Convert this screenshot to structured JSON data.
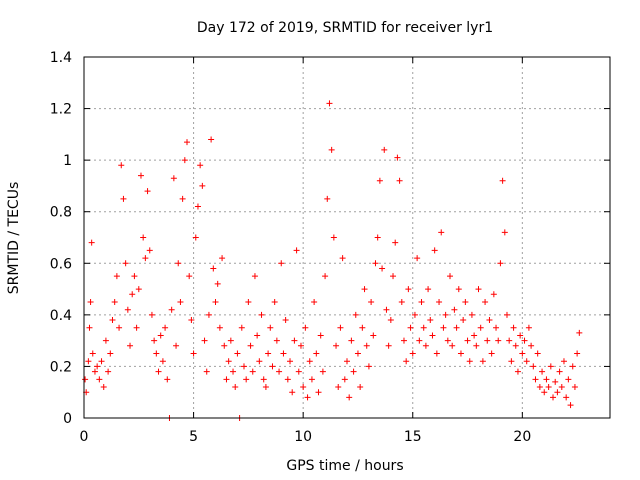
{
  "chart_data": {
    "type": "scatter",
    "title": "Day 172 of 2019, SRMTID for receiver lyr1",
    "xlabel": "GPS time / hours",
    "ylabel": "SRMTID / TECUs",
    "xlim": [
      0,
      24
    ],
    "ylim": [
      0,
      1.4
    ],
    "xticks": [
      0,
      5,
      10,
      15,
      20
    ],
    "xtick_labels": [
      "0",
      "5",
      "10",
      "15",
      "20"
    ],
    "yticks": [
      0,
      0.2,
      0.4,
      0.6,
      0.8,
      1,
      1.2,
      1.4
    ],
    "ytick_labels": [
      "0",
      "0.2",
      "0.4",
      "0.6",
      "0.8",
      "1",
      "1.2",
      "1.4"
    ],
    "grid": true,
    "marker": "plus",
    "color": "#ff0000",
    "series": [
      {
        "name": "SRMTID",
        "points": [
          [
            0.05,
            0.15
          ],
          [
            0.1,
            0.1
          ],
          [
            0.2,
            0.22
          ],
          [
            0.25,
            0.35
          ],
          [
            0.3,
            0.45
          ],
          [
            0.35,
            0.68
          ],
          [
            0.4,
            0.25
          ],
          [
            0.5,
            0.18
          ],
          [
            0.6,
            0.2
          ],
          [
            0.7,
            0.15
          ],
          [
            0.8,
            0.22
          ],
          [
            0.9,
            0.12
          ],
          [
            1.0,
            0.3
          ],
          [
            1.1,
            0.18
          ],
          [
            1.2,
            0.25
          ],
          [
            1.3,
            0.38
          ],
          [
            1.4,
            0.45
          ],
          [
            1.5,
            0.55
          ],
          [
            1.6,
            0.35
          ],
          [
            1.7,
            0.98
          ],
          [
            1.8,
            0.85
          ],
          [
            1.9,
            0.6
          ],
          [
            2.0,
            0.42
          ],
          [
            2.1,
            0.28
          ],
          [
            2.2,
            0.48
          ],
          [
            2.3,
            0.55
          ],
          [
            2.4,
            0.35
          ],
          [
            2.5,
            0.5
          ],
          [
            2.6,
            0.94
          ],
          [
            2.7,
            0.7
          ],
          [
            2.8,
            0.62
          ],
          [
            2.9,
            0.88
          ],
          [
            3.0,
            0.65
          ],
          [
            3.1,
            0.4
          ],
          [
            3.2,
            0.3
          ],
          [
            3.3,
            0.25
          ],
          [
            3.4,
            0.18
          ],
          [
            3.5,
            0.32
          ],
          [
            3.6,
            0.22
          ],
          [
            3.7,
            0.35
          ],
          [
            3.8,
            0.15
          ],
          [
            3.9,
            0.0
          ],
          [
            4.0,
            0.42
          ],
          [
            4.1,
            0.93
          ],
          [
            4.2,
            0.28
          ],
          [
            4.3,
            0.6
          ],
          [
            4.4,
            0.45
          ],
          [
            4.5,
            0.85
          ],
          [
            4.6,
            1.0
          ],
          [
            4.7,
            1.07
          ],
          [
            4.8,
            0.55
          ],
          [
            4.9,
            0.38
          ],
          [
            5.0,
            0.25
          ],
          [
            5.1,
            0.7
          ],
          [
            5.2,
            0.82
          ],
          [
            5.3,
            0.98
          ],
          [
            5.4,
            0.9
          ],
          [
            5.5,
            0.3
          ],
          [
            5.6,
            0.18
          ],
          [
            5.7,
            0.4
          ],
          [
            5.8,
            1.08
          ],
          [
            5.9,
            0.58
          ],
          [
            6.0,
            0.45
          ],
          [
            6.1,
            0.52
          ],
          [
            6.2,
            0.35
          ],
          [
            6.3,
            0.62
          ],
          [
            6.4,
            0.28
          ],
          [
            6.5,
            0.15
          ],
          [
            6.6,
            0.22
          ],
          [
            6.7,
            0.3
          ],
          [
            6.8,
            0.18
          ],
          [
            6.9,
            0.12
          ],
          [
            7.0,
            0.25
          ],
          [
            7.1,
            0.0
          ],
          [
            7.2,
            0.35
          ],
          [
            7.3,
            0.2
          ],
          [
            7.4,
            0.15
          ],
          [
            7.5,
            0.45
          ],
          [
            7.6,
            0.28
          ],
          [
            7.7,
            0.18
          ],
          [
            7.8,
            0.55
          ],
          [
            7.9,
            0.32
          ],
          [
            8.0,
            0.22
          ],
          [
            8.1,
            0.4
          ],
          [
            8.2,
            0.15
          ],
          [
            8.3,
            0.12
          ],
          [
            8.4,
            0.25
          ],
          [
            8.5,
            0.35
          ],
          [
            8.6,
            0.2
          ],
          [
            8.7,
            0.45
          ],
          [
            8.8,
            0.3
          ],
          [
            8.9,
            0.18
          ],
          [
            9.0,
            0.6
          ],
          [
            9.1,
            0.25
          ],
          [
            9.2,
            0.38
          ],
          [
            9.3,
            0.15
          ],
          [
            9.4,
            0.22
          ],
          [
            9.5,
            0.1
          ],
          [
            9.6,
            0.3
          ],
          [
            9.7,
            0.65
          ],
          [
            9.8,
            0.18
          ],
          [
            9.9,
            0.28
          ],
          [
            10.0,
            0.12
          ],
          [
            10.1,
            0.35
          ],
          [
            10.2,
            0.08
          ],
          [
            10.3,
            0.22
          ],
          [
            10.4,
            0.15
          ],
          [
            10.5,
            0.45
          ],
          [
            10.6,
            0.25
          ],
          [
            10.7,
            0.1
          ],
          [
            10.8,
            0.32
          ],
          [
            10.9,
            0.18
          ],
          [
            11.0,
            0.55
          ],
          [
            11.1,
            0.85
          ],
          [
            11.2,
            1.22
          ],
          [
            11.3,
            1.04
          ],
          [
            11.4,
            0.7
          ],
          [
            11.5,
            0.28
          ],
          [
            11.6,
            0.12
          ],
          [
            11.7,
            0.35
          ],
          [
            11.8,
            0.62
          ],
          [
            11.9,
            0.15
          ],
          [
            12.0,
            0.22
          ],
          [
            12.1,
            0.08
          ],
          [
            12.2,
            0.3
          ],
          [
            12.3,
            0.18
          ],
          [
            12.4,
            0.4
          ],
          [
            12.5,
            0.25
          ],
          [
            12.6,
            0.12
          ],
          [
            12.7,
            0.35
          ],
          [
            12.8,
            0.5
          ],
          [
            12.9,
            0.28
          ],
          [
            13.0,
            0.2
          ],
          [
            13.1,
            0.45
          ],
          [
            13.2,
            0.32
          ],
          [
            13.3,
            0.6
          ],
          [
            13.4,
            0.7
          ],
          [
            13.5,
            0.92
          ],
          [
            13.6,
            0.58
          ],
          [
            13.7,
            1.04
          ],
          [
            13.8,
            0.42
          ],
          [
            13.9,
            0.28
          ],
          [
            14.0,
            0.38
          ],
          [
            14.1,
            0.55
          ],
          [
            14.2,
            0.68
          ],
          [
            14.3,
            1.01
          ],
          [
            14.4,
            0.92
          ],
          [
            14.5,
            0.45
          ],
          [
            14.6,
            0.3
          ],
          [
            14.7,
            0.22
          ],
          [
            14.8,
            0.5
          ],
          [
            14.9,
            0.35
          ],
          [
            15.0,
            0.25
          ],
          [
            15.1,
            0.4
          ],
          [
            15.2,
            0.62
          ],
          [
            15.3,
            0.3
          ],
          [
            15.4,
            0.45
          ],
          [
            15.5,
            0.35
          ],
          [
            15.6,
            0.28
          ],
          [
            15.7,
            0.5
          ],
          [
            15.8,
            0.38
          ],
          [
            15.9,
            0.32
          ],
          [
            16.0,
            0.65
          ],
          [
            16.1,
            0.25
          ],
          [
            16.2,
            0.45
          ],
          [
            16.3,
            0.72
          ],
          [
            16.4,
            0.35
          ],
          [
            16.5,
            0.4
          ],
          [
            16.6,
            0.3
          ],
          [
            16.7,
            0.55
          ],
          [
            16.8,
            0.28
          ],
          [
            16.9,
            0.42
          ],
          [
            17.0,
            0.35
          ],
          [
            17.1,
            0.5
          ],
          [
            17.2,
            0.25
          ],
          [
            17.3,
            0.38
          ],
          [
            17.4,
            0.45
          ],
          [
            17.5,
            0.3
          ],
          [
            17.6,
            0.22
          ],
          [
            17.7,
            0.4
          ],
          [
            17.8,
            0.32
          ],
          [
            17.9,
            0.28
          ],
          [
            18.0,
            0.5
          ],
          [
            18.1,
            0.35
          ],
          [
            18.2,
            0.22
          ],
          [
            18.3,
            0.45
          ],
          [
            18.4,
            0.3
          ],
          [
            18.5,
            0.38
          ],
          [
            18.6,
            0.25
          ],
          [
            18.7,
            0.48
          ],
          [
            18.8,
            0.35
          ],
          [
            18.9,
            0.3
          ],
          [
            19.0,
            0.6
          ],
          [
            19.1,
            0.92
          ],
          [
            19.2,
            0.72
          ],
          [
            19.3,
            0.4
          ],
          [
            19.4,
            0.3
          ],
          [
            19.5,
            0.22
          ],
          [
            19.6,
            0.35
          ],
          [
            19.7,
            0.28
          ],
          [
            19.8,
            0.18
          ],
          [
            19.9,
            0.32
          ],
          [
            20.0,
            0.25
          ],
          [
            20.1,
            0.3
          ],
          [
            20.2,
            0.22
          ],
          [
            20.3,
            0.35
          ],
          [
            20.4,
            0.28
          ],
          [
            20.5,
            0.2
          ],
          [
            20.6,
            0.15
          ],
          [
            20.7,
            0.25
          ],
          [
            20.8,
            0.12
          ],
          [
            20.9,
            0.18
          ],
          [
            21.0,
            0.1
          ],
          [
            21.1,
            0.15
          ],
          [
            21.2,
            0.12
          ],
          [
            21.3,
            0.2
          ],
          [
            21.4,
            0.08
          ],
          [
            21.5,
            0.14
          ],
          [
            21.6,
            0.1
          ],
          [
            21.7,
            0.18
          ],
          [
            21.8,
            0.12
          ],
          [
            21.9,
            0.22
          ],
          [
            22.0,
            0.08
          ],
          [
            22.1,
            0.15
          ],
          [
            22.2,
            0.05
          ],
          [
            22.3,
            0.2
          ],
          [
            22.4,
            0.12
          ],
          [
            22.5,
            0.25
          ],
          [
            22.6,
            0.33
          ]
        ]
      }
    ]
  }
}
